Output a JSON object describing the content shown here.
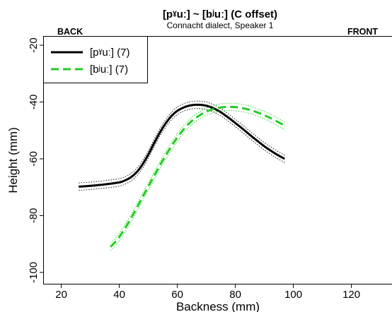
{
  "chart_data": {
    "type": "line",
    "title": "[pˠuː] ~ [bʲuː] (C offset)",
    "subtitle": "Connacht dialect, Speaker 1",
    "corner_left": "BACK",
    "corner_right": "FRONT",
    "xlabel": "Backness (mm)",
    "ylabel": "Height (mm)",
    "xlim": [
      14,
      134
    ],
    "ylim": [
      -104,
      -17
    ],
    "xticks": [
      20,
      40,
      60,
      80,
      100,
      120
    ],
    "yticks": [
      -20,
      -40,
      -60,
      -80,
      -100
    ],
    "grid": false,
    "legend_position": "top-left",
    "series": [
      {
        "name": "[pˠuː] (7)",
        "color": "#000000",
        "dash": "solid",
        "x": [
          26,
          30,
          35,
          40,
          42,
          44,
          46,
          48,
          50,
          52,
          54,
          56,
          58,
          60,
          62,
          64,
          66,
          68,
          70,
          72,
          74,
          76,
          78,
          80,
          82,
          84,
          86,
          88,
          90,
          92,
          94,
          97
        ],
        "y": [
          -69.8,
          -69.5,
          -69.0,
          -68.3,
          -67.6,
          -66.5,
          -64.7,
          -62.0,
          -58.5,
          -54.5,
          -50.7,
          -47.5,
          -44.9,
          -43.1,
          -42.0,
          -41.3,
          -41.0,
          -41.0,
          -41.3,
          -42.0,
          -43.0,
          -44.3,
          -45.8,
          -47.4,
          -49.0,
          -50.7,
          -52.4,
          -54.0,
          -55.6,
          -57.0,
          -58.3,
          -60.0
        ],
        "band": 1.3
      },
      {
        "name": "[bʲuː] (7)",
        "color": "#22cc22",
        "dash": "dashed",
        "x": [
          37,
          40,
          44,
          48,
          52,
          56,
          60,
          64,
          68,
          72,
          76,
          80,
          84,
          88,
          92,
          97
        ],
        "y": [
          -91.0,
          -87.5,
          -81.0,
          -73.5,
          -66.0,
          -58.8,
          -52.5,
          -47.6,
          -44.5,
          -42.6,
          -41.8,
          -41.8,
          -42.5,
          -43.8,
          -45.6,
          -48.3
        ],
        "band": 1.3
      }
    ]
  }
}
